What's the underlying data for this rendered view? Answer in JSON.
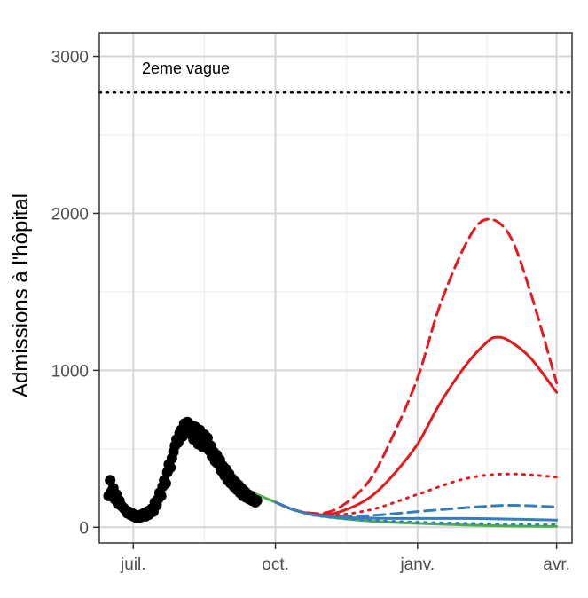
{
  "chart_data": {
    "type": "line",
    "title": "",
    "xlabel": "",
    "ylabel": "Admissions à l'hôpital",
    "x_type": "date",
    "xlim": [
      "2020-06-09",
      "2021-04-11"
    ],
    "ylim": [
      -100,
      3150
    ],
    "x_ticks": [
      {
        "date": "2020-07-01",
        "label": "juil."
      },
      {
        "date": "2020-10-01",
        "label": "oct."
      },
      {
        "date": "2021-01-01",
        "label": "janv."
      },
      {
        "date": "2021-04-01",
        "label": "avr."
      }
    ],
    "y_ticks": [
      {
        "value": 0,
        "label": "0"
      },
      {
        "value": 1000,
        "label": "1000"
      },
      {
        "value": 2000,
        "label": "2000"
      },
      {
        "value": 3000,
        "label": "3000"
      }
    ],
    "grid": true,
    "legend": "none",
    "reference_line": {
      "value": 2770,
      "label": "2eme vague",
      "style": "dotted",
      "color": "#000000"
    },
    "observed": {
      "color": "#000000",
      "points": [
        [
          "2020-06-15",
          200
        ],
        [
          "2020-06-16",
          300
        ],
        [
          "2020-06-17",
          230
        ],
        [
          "2020-06-18",
          250
        ],
        [
          "2020-06-19",
          180
        ],
        [
          "2020-06-20",
          210
        ],
        [
          "2020-06-21",
          150
        ],
        [
          "2020-06-22",
          170
        ],
        [
          "2020-06-23",
          140
        ],
        [
          "2020-06-24",
          130
        ],
        [
          "2020-06-25",
          120
        ],
        [
          "2020-06-26",
          110
        ],
        [
          "2020-06-27",
          90
        ],
        [
          "2020-06-28",
          100
        ],
        [
          "2020-06-29",
          80
        ],
        [
          "2020-06-30",
          90
        ],
        [
          "2020-07-01",
          70
        ],
        [
          "2020-07-02",
          80
        ],
        [
          "2020-07-03",
          60
        ],
        [
          "2020-07-04",
          70
        ],
        [
          "2020-07-05",
          60
        ],
        [
          "2020-07-06",
          80
        ],
        [
          "2020-07-07",
          70
        ],
        [
          "2020-07-08",
          90
        ],
        [
          "2020-07-09",
          70
        ],
        [
          "2020-07-10",
          100
        ],
        [
          "2020-07-11",
          80
        ],
        [
          "2020-07-12",
          110
        ],
        [
          "2020-07-13",
          120
        ],
        [
          "2020-07-14",
          100
        ],
        [
          "2020-07-15",
          160
        ],
        [
          "2020-07-16",
          140
        ],
        [
          "2020-07-17",
          180
        ],
        [
          "2020-07-18",
          220
        ],
        [
          "2020-07-19",
          200
        ],
        [
          "2020-07-20",
          260
        ],
        [
          "2020-07-21",
          300
        ],
        [
          "2020-07-22",
          280
        ],
        [
          "2020-07-23",
          350
        ],
        [
          "2020-07-24",
          400
        ],
        [
          "2020-07-25",
          380
        ],
        [
          "2020-07-26",
          440
        ],
        [
          "2020-07-27",
          480
        ],
        [
          "2020-07-28",
          520
        ],
        [
          "2020-07-29",
          560
        ],
        [
          "2020-07-30",
          540
        ],
        [
          "2020-07-31",
          600
        ],
        [
          "2020-08-01",
          620
        ],
        [
          "2020-08-02",
          580
        ],
        [
          "2020-08-03",
          660
        ],
        [
          "2020-08-04",
          640
        ],
        [
          "2020-08-05",
          670
        ],
        [
          "2020-08-06",
          600
        ],
        [
          "2020-08-07",
          650
        ],
        [
          "2020-08-08",
          610
        ],
        [
          "2020-08-09",
          560
        ],
        [
          "2020-08-10",
          640
        ],
        [
          "2020-08-11",
          600
        ],
        [
          "2020-08-12",
          530
        ],
        [
          "2020-08-13",
          620
        ],
        [
          "2020-08-14",
          580
        ],
        [
          "2020-08-15",
          510
        ],
        [
          "2020-08-16",
          590
        ],
        [
          "2020-08-17",
          550
        ],
        [
          "2020-08-18",
          570
        ],
        [
          "2020-08-19",
          490
        ],
        [
          "2020-08-20",
          520
        ],
        [
          "2020-08-21",
          450
        ],
        [
          "2020-08-22",
          480
        ],
        [
          "2020-08-23",
          420
        ],
        [
          "2020-08-24",
          460
        ],
        [
          "2020-08-25",
          400
        ],
        [
          "2020-08-26",
          430
        ],
        [
          "2020-08-27",
          360
        ],
        [
          "2020-08-28",
          390
        ],
        [
          "2020-08-29",
          330
        ],
        [
          "2020-08-30",
          370
        ],
        [
          "2020-08-31",
          300
        ],
        [
          "2020-09-01",
          340
        ],
        [
          "2020-09-02",
          280
        ],
        [
          "2020-09-03",
          310
        ],
        [
          "2020-09-04",
          260
        ],
        [
          "2020-09-05",
          290
        ],
        [
          "2020-09-06",
          240
        ],
        [
          "2020-09-07",
          270
        ],
        [
          "2020-09-08",
          220
        ],
        [
          "2020-09-09",
          250
        ],
        [
          "2020-09-10",
          200
        ],
        [
          "2020-09-11",
          230
        ],
        [
          "2020-09-12",
          190
        ],
        [
          "2020-09-13",
          210
        ],
        [
          "2020-09-14",
          180
        ],
        [
          "2020-09-15",
          200
        ],
        [
          "2020-09-16",
          170
        ],
        [
          "2020-09-17",
          180
        ],
        [
          "2020-09-18",
          160
        ],
        [
          "2020-09-19",
          170
        ]
      ]
    },
    "series": [
      {
        "color": "#4daf4a",
        "style": "solid",
        "points": [
          [
            "2020-07-25",
            430
          ],
          [
            "2020-08-05",
            620
          ],
          [
            "2020-08-15",
            600
          ],
          [
            "2020-08-25",
            450
          ],
          [
            "2020-09-05",
            310
          ],
          [
            "2020-09-15",
            230
          ],
          [
            "2020-10-01",
            160
          ],
          [
            "2020-10-15",
            105
          ],
          [
            "2020-11-01",
            70
          ],
          [
            "2020-12-01",
            40
          ],
          [
            "2021-01-01",
            25
          ],
          [
            "2021-02-01",
            15
          ],
          [
            "2021-03-01",
            8
          ],
          [
            "2021-04-01",
            5
          ]
        ]
      },
      {
        "color": "#e41a1c",
        "style": "dashed",
        "points": [
          [
            "2020-10-01",
            160
          ],
          [
            "2020-10-15",
            105
          ],
          [
            "2020-11-01",
            90
          ],
          [
            "2020-11-15",
            150
          ],
          [
            "2020-12-01",
            300
          ],
          [
            "2020-12-15",
            560
          ],
          [
            "2021-01-01",
            950
          ],
          [
            "2021-01-15",
            1400
          ],
          [
            "2021-02-01",
            1800
          ],
          [
            "2021-02-14",
            1960
          ],
          [
            "2021-03-01",
            1870
          ],
          [
            "2021-03-15",
            1500
          ],
          [
            "2021-04-01",
            920
          ]
        ]
      },
      {
        "color": "#e41a1c",
        "style": "solid",
        "points": [
          [
            "2020-10-01",
            160
          ],
          [
            "2020-10-15",
            105
          ],
          [
            "2020-11-01",
            80
          ],
          [
            "2020-11-15",
            110
          ],
          [
            "2020-12-01",
            190
          ],
          [
            "2020-12-15",
            320
          ],
          [
            "2021-01-01",
            530
          ],
          [
            "2021-01-15",
            780
          ],
          [
            "2021-02-01",
            1030
          ],
          [
            "2021-02-15",
            1180
          ],
          [
            "2021-02-21",
            1210
          ],
          [
            "2021-03-01",
            1190
          ],
          [
            "2021-03-15",
            1080
          ],
          [
            "2021-04-01",
            860
          ]
        ]
      },
      {
        "color": "#e41a1c",
        "style": "dotted",
        "points": [
          [
            "2020-10-01",
            160
          ],
          [
            "2020-10-15",
            105
          ],
          [
            "2020-11-01",
            72
          ],
          [
            "2020-12-01",
            110
          ],
          [
            "2021-01-01",
            210
          ],
          [
            "2021-02-01",
            310
          ],
          [
            "2021-03-01",
            340
          ],
          [
            "2021-04-01",
            320
          ]
        ]
      },
      {
        "color": "#377eb8",
        "style": "dashed",
        "points": [
          [
            "2020-10-01",
            160
          ],
          [
            "2020-10-15",
            105
          ],
          [
            "2020-11-01",
            72
          ],
          [
            "2020-12-01",
            75
          ],
          [
            "2021-01-01",
            100
          ],
          [
            "2021-02-01",
            125
          ],
          [
            "2021-03-01",
            140
          ],
          [
            "2021-04-01",
            130
          ]
        ]
      },
      {
        "color": "#377eb8",
        "style": "solid",
        "points": [
          [
            "2020-10-01",
            160
          ],
          [
            "2020-10-15",
            105
          ],
          [
            "2020-11-01",
            70
          ],
          [
            "2020-12-01",
            58
          ],
          [
            "2021-01-01",
            56
          ],
          [
            "2021-02-01",
            56
          ],
          [
            "2021-03-01",
            52
          ],
          [
            "2021-04-01",
            45
          ]
        ]
      },
      {
        "color": "#377eb8",
        "style": "dotted",
        "points": [
          [
            "2020-10-01",
            160
          ],
          [
            "2020-10-15",
            105
          ],
          [
            "2020-11-01",
            68
          ],
          [
            "2020-12-01",
            45
          ],
          [
            "2021-01-01",
            32
          ],
          [
            "2021-02-01",
            25
          ],
          [
            "2021-03-01",
            20
          ],
          [
            "2021-04-01",
            18
          ]
        ]
      }
    ]
  }
}
